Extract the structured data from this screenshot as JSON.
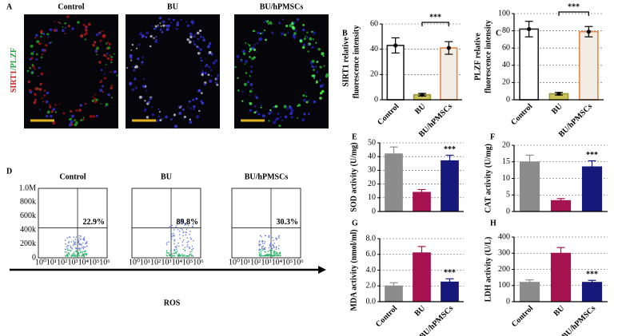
{
  "images": {
    "label": "A",
    "stain": [
      "SIRT1",
      "/PLZF"
    ],
    "titles": [
      "Control",
      "BU",
      "BU/hPMSCs"
    ]
  },
  "flow": {
    "label": "D",
    "titles": [
      "Control",
      "BU",
      "BU/hPMSCs"
    ],
    "percents": [
      "22.9%",
      "89.8%",
      "30.3%"
    ],
    "yticks": [
      "1.0M",
      "800k",
      "600k",
      "400k",
      "200k",
      "0"
    ],
    "xticks": [
      "10⁰",
      "10¹",
      "10²",
      "10³",
      "10⁴",
      "10⁵",
      "10⁶"
    ],
    "xlabel": "ROS"
  },
  "chart_data": [
    {
      "type": "bar",
      "label": "B",
      "ylabel": [
        "SIRT1 relative",
        "fluorescence intensity"
      ],
      "categories": [
        "Control",
        "BU",
        "BU/hPMSCs"
      ],
      "values": [
        43,
        4,
        41
      ],
      "errors": [
        6,
        1,
        5
      ],
      "points": true,
      "colors": [
        "#ffffff",
        "#c9c25a",
        "#f3ece4"
      ],
      "edgecolors": [
        "#222222",
        "#9a9a3a",
        "#e0894a"
      ],
      "ylim": [
        0,
        60
      ],
      "yticks": [
        0,
        20,
        40,
        60
      ],
      "grid": true,
      "significance": {
        "label": "***",
        "between": [
          1,
          2
        ]
      }
    },
    {
      "type": "bar",
      "label": "C",
      "ylabel": [
        "PLZF relative",
        "fluorescence intensity"
      ],
      "categories": [
        "Control",
        "BU",
        "BU/hPMSCs"
      ],
      "values": [
        82,
        7,
        79
      ],
      "errors": [
        9,
        1.5,
        6
      ],
      "points": true,
      "colors": [
        "#ffffff",
        "#c9c25a",
        "#f3ece4"
      ],
      "edgecolors": [
        "#222222",
        "#9a9a3a",
        "#e0894a"
      ],
      "ylim": [
        0,
        100
      ],
      "yticks": [
        0,
        20,
        40,
        60,
        80,
        100
      ],
      "grid": true,
      "significance": {
        "label": "***",
        "between": [
          1,
          2
        ]
      }
    },
    {
      "type": "bar",
      "label": "E",
      "ylabel": [
        "SOD activity (U/mg)"
      ],
      "categories": [
        null,
        null,
        null
      ],
      "values": [
        42,
        14,
        37
      ],
      "errors": [
        5,
        2,
        4
      ],
      "points": false,
      "colors": [
        "#8c8c8c",
        "#a5124f",
        "#16187a"
      ],
      "edgecolors": [
        "#8c8c8c",
        "#a5124f",
        "#16187a"
      ],
      "ylim": [
        0,
        50
      ],
      "yticks": [
        0,
        10,
        20,
        30,
        40,
        50
      ],
      "grid": true,
      "significance": {
        "label": "***",
        "over": 2
      }
    },
    {
      "type": "bar",
      "label": "F",
      "ylabel": [
        "CAT activity (U/mg)"
      ],
      "categories": [
        null,
        null,
        null
      ],
      "values": [
        15,
        3.3,
        13.5
      ],
      "errors": [
        2,
        0.6,
        1.8
      ],
      "points": false,
      "colors": [
        "#8c8c8c",
        "#a5124f",
        "#16187a"
      ],
      "edgecolors": [
        "#8c8c8c",
        "#a5124f",
        "#16187a"
      ],
      "ylim": [
        0,
        20
      ],
      "yticks": [
        0,
        5,
        10,
        15,
        20
      ],
      "grid": true,
      "significance": {
        "label": "***",
        "over": 2
      }
    },
    {
      "type": "bar",
      "label": "G",
      "ylabel": [
        "MDA activity (nmol/ml)"
      ],
      "categories": [
        "Control",
        "BU",
        "BU/hPMSCs"
      ],
      "values": [
        2,
        6.2,
        2.5
      ],
      "errors": [
        0.4,
        0.8,
        0.4
      ],
      "points": false,
      "colors": [
        "#8c8c8c",
        "#a5124f",
        "#16187a"
      ],
      "edgecolors": [
        "#8c8c8c",
        "#a5124f",
        "#16187a"
      ],
      "ylim": [
        0,
        8
      ],
      "yticks": [
        {
          "value": 0,
          "label": "0.0"
        },
        {
          "value": 2,
          "label": "2.0"
        },
        {
          "value": 4,
          "label": "4.0"
        },
        {
          "value": 6,
          "label": "6.0"
        },
        {
          "value": 8,
          "label": "8.0"
        }
      ],
      "grid": true,
      "significance": {
        "label": "***",
        "over": 2
      }
    },
    {
      "type": "bar",
      "label": "H",
      "ylabel": [
        "LDH activity (U/L)"
      ],
      "categories": [
        "Control",
        "BU",
        "BU/hPMSCs"
      ],
      "values": [
        120,
        300,
        120
      ],
      "errors": [
        15,
        35,
        12
      ],
      "points": false,
      "colors": [
        "#8c8c8c",
        "#a5124f",
        "#16187a"
      ],
      "edgecolors": [
        "#8c8c8c",
        "#a5124f",
        "#16187a"
      ],
      "ylim": [
        0,
        400
      ],
      "yticks": [
        0,
        100,
        200,
        300,
        400
      ],
      "grid": true,
      "significance": {
        "label": "***",
        "over": 2
      }
    }
  ]
}
